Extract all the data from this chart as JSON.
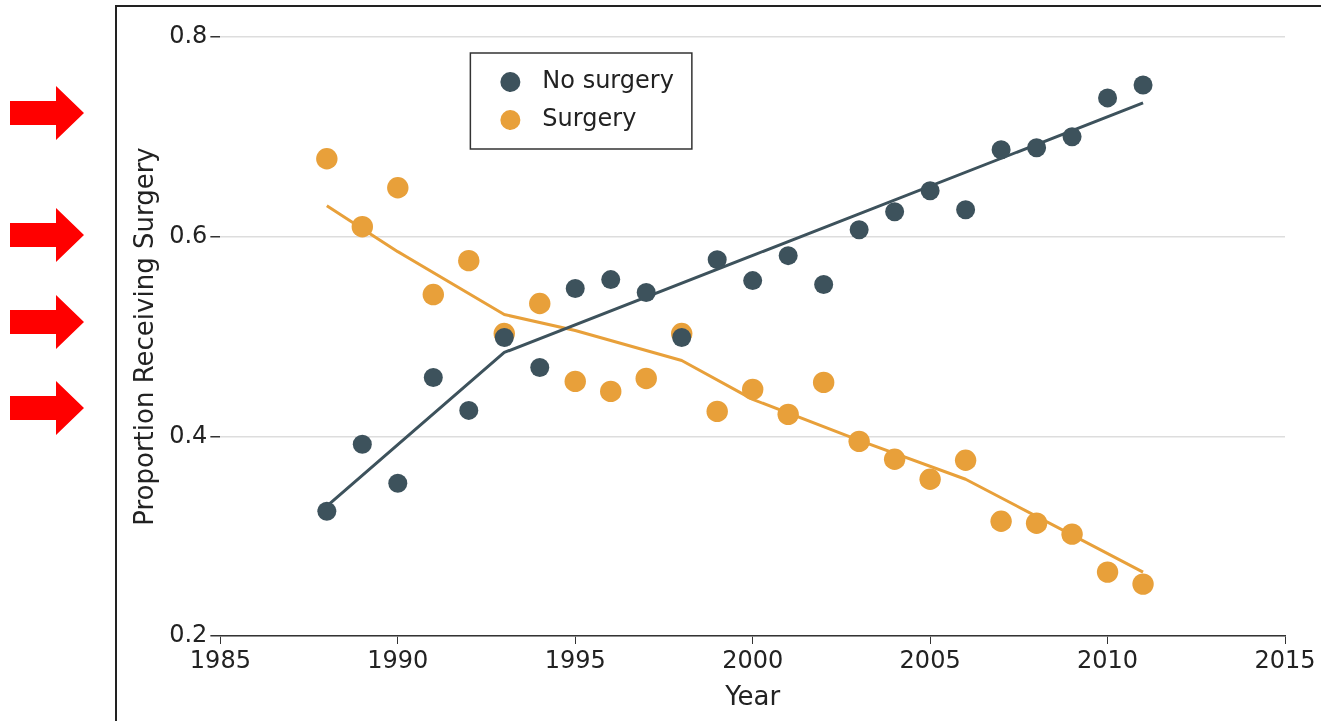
{
  "chart_data": {
    "type": "scatter",
    "xlabel": "Year",
    "ylabel": "Proportion Receiving Surgery",
    "xlim": [
      1985,
      2015
    ],
    "xticks": [
      1985,
      1990,
      1995,
      2000,
      2005,
      2010,
      2015
    ],
    "ylim": [
      0.2,
      0.8
    ],
    "yticks": [
      0.2,
      0.4,
      0.6,
      0.8
    ],
    "grid": "y",
    "legend": "top left",
    "marker": "circle",
    "x": [
      1988,
      1989,
      1990,
      1991,
      1992,
      1993,
      1994,
      1995,
      1996,
      1997,
      1998,
      1999,
      2000,
      2001,
      2002,
      2003,
      2004,
      2005,
      2006,
      2007,
      2008,
      2009,
      2010,
      2011
    ],
    "series": [
      {
        "name": "No surgery",
        "color": "#3d525c",
        "values": [
          0.325,
          0.392,
          0.353,
          0.459,
          0.426,
          0.499,
          0.469,
          0.548,
          0.557,
          0.544,
          0.499,
          0.577,
          0.556,
          0.581,
          0.552,
          0.607,
          0.625,
          0.646,
          0.627,
          0.687,
          0.689,
          0.7,
          0.739,
          0.752
        ]
      },
      {
        "name": "Surgery",
        "color": "#e8a03a",
        "values": [
          0.678,
          0.61,
          0.649,
          0.542,
          0.576,
          0.503,
          0.533,
          0.455,
          0.445,
          0.458,
          0.503,
          0.425,
          0.447,
          0.422,
          0.454,
          0.395,
          0.377,
          0.357,
          0.376,
          0.315,
          0.313,
          0.302,
          0.264,
          0.252
        ]
      },
      {
        "type": "line",
        "marker": "none",
        "color": "#3d525c",
        "x": [
          1988,
          1993,
          2011
        ],
        "values": [
          0.33,
          0.484,
          0.734
        ]
      },
      {
        "type": "line",
        "marker": "none",
        "color": "#e8a03a",
        "x": [
          1988,
          1990,
          1993,
          1995,
          1998,
          2000,
          2003,
          2006,
          2011
        ],
        "values": [
          0.631,
          0.585,
          0.522,
          0.506,
          0.476,
          0.437,
          0.396,
          0.357,
          0.264
        ]
      }
    ]
  }
}
